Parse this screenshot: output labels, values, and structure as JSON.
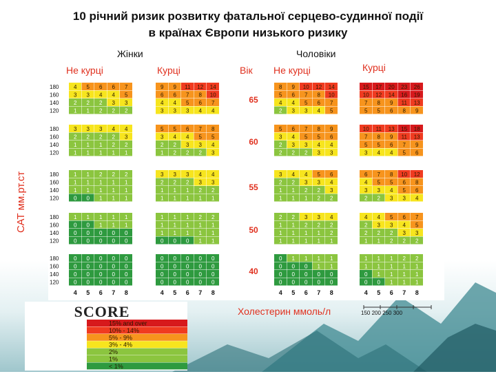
{
  "title_line1": "10 річний ризик розвитку фатальної серцево-судинної події",
  "title_line2": "в країнах Європи  низького ризику",
  "labels": {
    "women": "Жінки",
    "men": "Чоловіки",
    "non_smokers": "Не курці",
    "smokers": "Курці",
    "age": "Вік",
    "y_axis": "САТ мм.рт.ст",
    "x_axis": "Холестерин ммоль/л",
    "mg_ticks": "150 200 250 300"
  },
  "colors": {
    "dark_red": "#d7191c",
    "red": "#f03b20",
    "orange": "#f7941d",
    "yellow": "#f7e51e",
    "light_green": "#8bc53f",
    "green": "#2e9a3f"
  },
  "chart_data": {
    "type": "heatmap",
    "title": "10 річний ризик розвитку фатальної серцево-судинної події в країнах Європи  низького ризику",
    "x_label": "Холестерин ммоль/л",
    "y_label": "САТ мм.рт.ст",
    "cholesterol": [
      "4",
      "5",
      "6",
      "7",
      "8"
    ],
    "sbp": [
      "180",
      "160",
      "140",
      "120"
    ],
    "groups": [
      "Не курці",
      "Курці",
      "Не курці",
      "Курці"
    ],
    "sex": [
      "Жінки",
      "Жінки",
      "Чоловіки",
      "Чоловіки"
    ],
    "ages": [
      "65",
      "60",
      "55",
      "50",
      "40"
    ],
    "values": {
      "65": [
        [
          [
            4,
            5,
            6,
            6,
            7
          ],
          [
            3,
            3,
            4,
            4,
            5
          ],
          [
            2,
            2,
            2,
            3,
            3
          ],
          [
            1,
            1,
            2,
            2,
            2
          ]
        ],
        [
          [
            9,
            9,
            11,
            12,
            14
          ],
          [
            6,
            6,
            7,
            8,
            10
          ],
          [
            4,
            4,
            5,
            6,
            7
          ],
          [
            3,
            3,
            3,
            4,
            4
          ]
        ],
        [
          [
            8,
            9,
            10,
            12,
            14
          ],
          [
            5,
            6,
            7,
            8,
            10
          ],
          [
            4,
            4,
            5,
            6,
            7
          ],
          [
            2,
            3,
            3,
            4,
            5
          ]
        ],
        [
          [
            15,
            17,
            20,
            23,
            26
          ],
          [
            10,
            12,
            14,
            16,
            19
          ],
          [
            7,
            8,
            9,
            11,
            13
          ],
          [
            5,
            5,
            6,
            8,
            9
          ]
        ]
      ],
      "60": [
        [
          [
            3,
            3,
            3,
            4,
            4
          ],
          [
            2,
            2,
            2,
            2,
            3
          ],
          [
            1,
            1,
            1,
            2,
            2
          ],
          [
            1,
            1,
            1,
            1,
            1
          ]
        ],
        [
          [
            5,
            5,
            6,
            7,
            8
          ],
          [
            3,
            4,
            4,
            5,
            5
          ],
          [
            2,
            2,
            3,
            3,
            4
          ],
          [
            1,
            2,
            2,
            2,
            3
          ]
        ],
        [
          [
            5,
            6,
            7,
            8,
            9
          ],
          [
            3,
            4,
            5,
            5,
            6
          ],
          [
            2,
            3,
            3,
            4,
            4
          ],
          [
            2,
            2,
            2,
            3,
            3
          ]
        ],
        [
          [
            10,
            11,
            13,
            15,
            18
          ],
          [
            7,
            8,
            9,
            11,
            13
          ],
          [
            5,
            5,
            6,
            7,
            9
          ],
          [
            3,
            4,
            4,
            5,
            6
          ]
        ]
      ],
      "55": [
        [
          [
            1,
            1,
            2,
            2,
            2
          ],
          [
            1,
            1,
            1,
            1,
            1
          ],
          [
            1,
            1,
            1,
            1,
            1
          ],
          [
            0,
            0,
            1,
            1,
            1
          ]
        ],
        [
          [
            3,
            3,
            3,
            4,
            4
          ],
          [
            2,
            2,
            2,
            3,
            3
          ],
          [
            1,
            1,
            1,
            2,
            2
          ],
          [
            1,
            1,
            1,
            1,
            1
          ]
        ],
        [
          [
            3,
            4,
            4,
            5,
            6
          ],
          [
            2,
            2,
            3,
            3,
            4
          ],
          [
            1,
            1,
            2,
            2,
            3
          ],
          [
            1,
            1,
            1,
            2,
            2
          ]
        ],
        [
          [
            6,
            7,
            8,
            10,
            12
          ],
          [
            4,
            5,
            5,
            6,
            8
          ],
          [
            3,
            3,
            4,
            5,
            6
          ],
          [
            2,
            2,
            3,
            3,
            4
          ]
        ]
      ],
      "50": [
        [
          [
            1,
            1,
            1,
            1,
            1
          ],
          [
            0,
            0,
            1,
            1,
            1
          ],
          [
            0,
            0,
            0,
            0,
            0
          ],
          [
            0,
            0,
            0,
            0,
            0
          ]
        ],
        [
          [
            1,
            1,
            1,
            2,
            2
          ],
          [
            1,
            1,
            1,
            1,
            1
          ],
          [
            1,
            1,
            1,
            1,
            1
          ],
          [
            0,
            0,
            0,
            1,
            1
          ]
        ],
        [
          [
            2,
            2,
            3,
            3,
            4
          ],
          [
            1,
            1,
            2,
            2,
            2
          ],
          [
            1,
            1,
            1,
            1,
            2
          ],
          [
            1,
            1,
            1,
            1,
            1
          ]
        ],
        [
          [
            4,
            4,
            5,
            6,
            7
          ],
          [
            2,
            3,
            3,
            4,
            5
          ],
          [
            2,
            2,
            2,
            3,
            3
          ],
          [
            1,
            1,
            2,
            2,
            2
          ]
        ]
      ],
      "40": [
        [
          [
            0,
            0,
            0,
            0,
            0
          ],
          [
            0,
            0,
            0,
            0,
            0
          ],
          [
            0,
            0,
            0,
            0,
            0
          ],
          [
            0,
            0,
            0,
            0,
            0
          ]
        ],
        [
          [
            0,
            0,
            0,
            0,
            0
          ],
          [
            0,
            0,
            0,
            0,
            0
          ],
          [
            0,
            0,
            0,
            0,
            0
          ],
          [
            0,
            0,
            0,
            0,
            0
          ]
        ],
        [
          [
            0,
            1,
            1,
            1,
            1
          ],
          [
            0,
            0,
            0,
            1,
            1
          ],
          [
            0,
            0,
            0,
            0,
            0
          ],
          [
            0,
            0,
            0,
            0,
            0
          ]
        ],
        [
          [
            1,
            1,
            1,
            2,
            2
          ],
          [
            1,
            1,
            1,
            1,
            1
          ],
          [
            0,
            1,
            1,
            1,
            1
          ],
          [
            0,
            0,
            1,
            1,
            1
          ]
        ]
      ]
    },
    "legend": {
      "brand": "SCORE",
      "entries": [
        "15% and over",
        "10% - 14%",
        "5% - 9%",
        "3% - 4%",
        "2%",
        "1%",
        "< 1%"
      ]
    }
  }
}
